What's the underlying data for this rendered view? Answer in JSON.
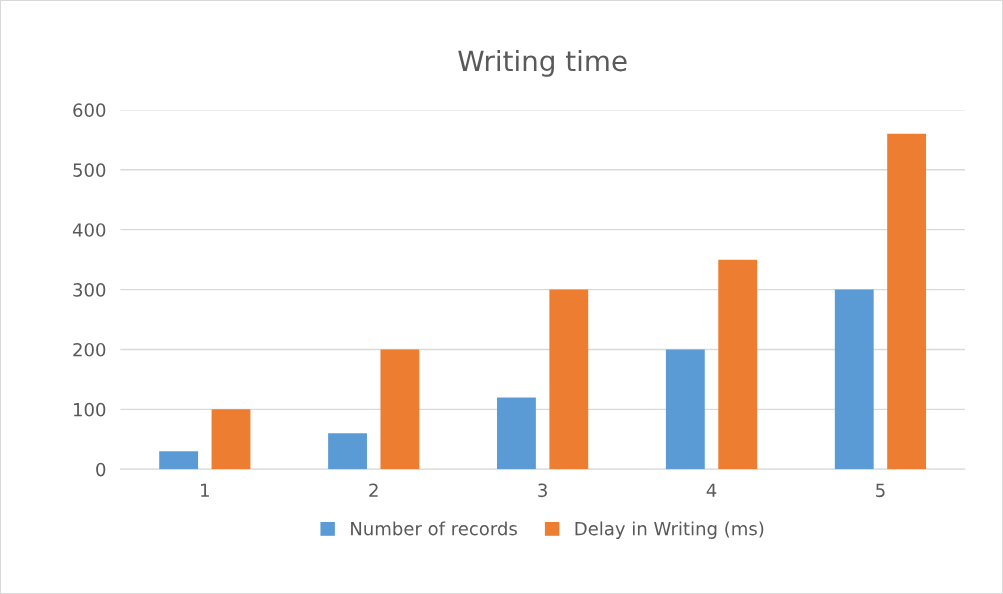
{
  "chart_data": {
    "type": "bar",
    "title": "Writing time",
    "categories": [
      "1",
      "2",
      "3",
      "4",
      "5"
    ],
    "series": [
      {
        "name": "Number of records",
        "color": "#5b9bd5",
        "values": [
          30,
          60,
          120,
          200,
          300
        ]
      },
      {
        "name": "Delay in Writing (ms)",
        "color": "#ed7d31",
        "values": [
          100,
          200,
          300,
          350,
          560
        ]
      }
    ],
    "ylim": [
      0,
      600
    ],
    "yticks": [
      0,
      100,
      200,
      300,
      400,
      500,
      600
    ],
    "grid": "y",
    "legend": "bottom"
  }
}
